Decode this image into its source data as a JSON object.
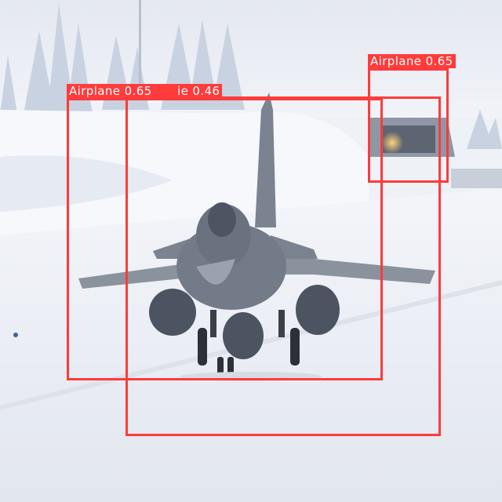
{
  "scene": {
    "description_icon": "fighter-jet-on-snowy-runway",
    "sky_color": "#eaeef5",
    "snow_color": "#f4f6fb",
    "forest_color": "#c5cfde",
    "jet_color": "#5a6270"
  },
  "detections": [
    {
      "label": "Airplane 0.65",
      "class": "Airplane",
      "confidence": 0.65,
      "color": "#ff3b3b"
    },
    {
      "label": "Airplane 0.65",
      "class": "Airplane",
      "confidence": 0.65,
      "color": "#ff3b3b"
    },
    {
      "label": "ie 0.46",
      "class": "Airplane",
      "confidence": 0.46,
      "color": "#ff3b3b"
    }
  ]
}
